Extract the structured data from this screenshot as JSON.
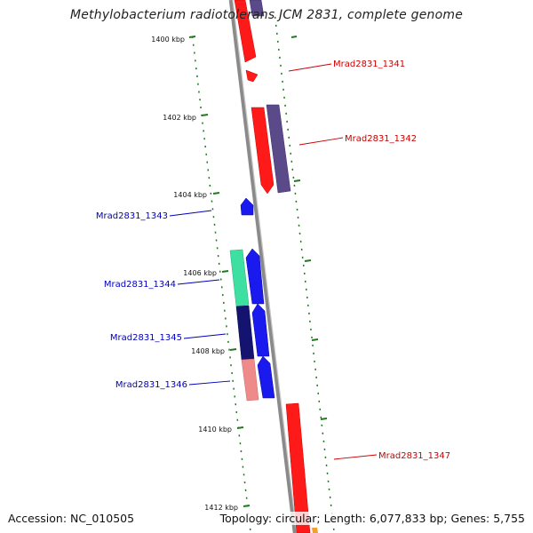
{
  "header": {
    "title": "Methylobacterium radiotolerans JCM 2831, complete genome"
  },
  "ruler": {
    "ticks": [
      "1400 kbp",
      "1402 kbp",
      "1404 kbp",
      "1406 kbp",
      "1408 kbp",
      "1410 kbp",
      "1412 kbp"
    ]
  },
  "genes": [
    {
      "label": "Mrad2831_1341",
      "strand": "forward"
    },
    {
      "label": "Mrad2831_1342",
      "strand": "forward"
    },
    {
      "label": "Mrad2831_1343",
      "strand": "reverse"
    },
    {
      "label": "Mrad2831_1344",
      "strand": "reverse"
    },
    {
      "label": "Mrad2831_1345",
      "strand": "reverse"
    },
    {
      "label": "Mrad2831_1346",
      "strand": "reverse"
    },
    {
      "label": "Mrad2831_1347",
      "strand": "forward"
    }
  ],
  "colors": {
    "backbone": "#8a8a8a",
    "ticks": "#1f7a1f",
    "forward_label": "#cc0000",
    "reverse_label": "#0000bb",
    "red": "#ff1a1a",
    "purple": "#5a4a8a",
    "blue": "#1a1aee",
    "navy": "#141470",
    "mint": "#3de0a0",
    "pink": "#ee8a8a",
    "orange": "#f0a030"
  },
  "footer": {
    "accession": "Accession: NC_010505",
    "topology": "Topology: circular; Length: 6,077,833 bp; Genes: 5,755"
  }
}
